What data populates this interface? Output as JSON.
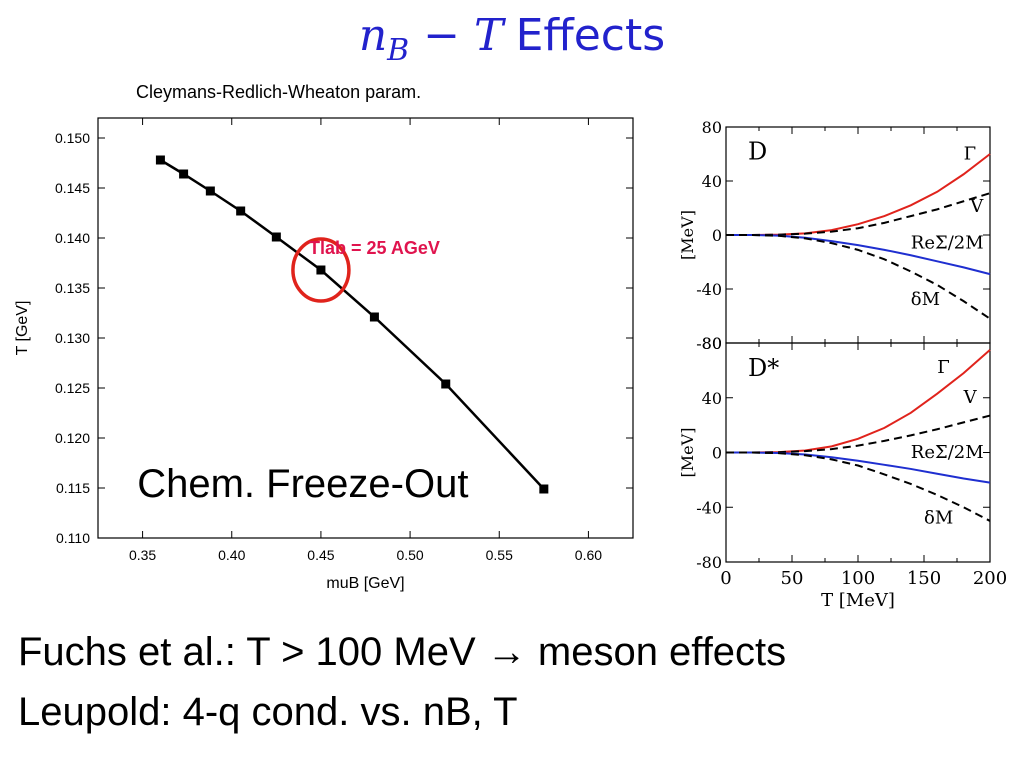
{
  "slide": {
    "title_math_n": "n",
    "title_math_sub": "B",
    "title_math_rest": " − T",
    "title_word": "Effects",
    "left_subtitle": "Cleymans-Redlich-Wheaton param.",
    "bullets": [
      "Fuchs et al.: T > 100 MeV → meson effects",
      "Leupold: 4-q cond. vs. nB, T"
    ]
  },
  "colors": {
    "red": "#e0231c",
    "blue": "#1f2fd0",
    "black": "#000000",
    "annotation": "#e0144e"
  },
  "chart_data": [
    {
      "type": "line",
      "xlabel": "muB [GeV]",
      "ylabel": "T [GeV]",
      "xlim": [
        0.325,
        0.625
      ],
      "ylim": [
        0.11,
        0.152
      ],
      "x_ticks": [
        0.35,
        0.4,
        0.45,
        0.5,
        0.55,
        0.6
      ],
      "x_tick_labels": [
        "0.35",
        "0.40",
        "0.45",
        "0.50",
        "0.55",
        "0.60"
      ],
      "y_ticks": [
        0.11,
        0.115,
        0.12,
        0.125,
        0.13,
        0.135,
        0.14,
        0.145,
        0.15
      ],
      "y_tick_labels": [
        "0.110",
        "0.115",
        "0.120",
        "0.125",
        "0.130",
        "0.135",
        "0.140",
        "0.145",
        "0.150"
      ],
      "series": [
        {
          "x": [
            0.36,
            0.373,
            0.388,
            0.405,
            0.425,
            0.45,
            0.48,
            0.52,
            0.575
          ],
          "y": [
            0.1478,
            0.1464,
            0.1447,
            0.1427,
            0.1401,
            0.1368,
            0.1321,
            0.1254,
            0.1149
          ]
        }
      ],
      "annotations": [
        {
          "text": "Tlab = 25 AGeV",
          "x": 0.48,
          "y": 0.1384
        },
        {
          "text": "Chem. Freeze-Out",
          "x": 0.347,
          "y": 0.1141
        }
      ],
      "circle_at": {
        "x": 0.45,
        "y": 0.1368
      }
    },
    {
      "type": "line",
      "panel_label": "D",
      "ylabel": "[MeV]",
      "xlim": [
        0,
        200
      ],
      "ylim": [
        -80,
        80
      ],
      "y_ticks": [
        -80,
        -40,
        0,
        40,
        80
      ],
      "y_tick_labels": [
        "-80",
        "-40",
        "0",
        "40",
        "80"
      ],
      "series": [
        {
          "name": "Γ",
          "color": "#e0231c",
          "dash": false,
          "label_at": [
            180,
            56
          ],
          "x": [
            0,
            20,
            40,
            60,
            80,
            100,
            120,
            140,
            160,
            180,
            200
          ],
          "y": [
            0,
            0,
            0.3,
            1.2,
            3.6,
            8,
            14,
            22,
            32,
            45,
            60
          ]
        },
        {
          "name": "V",
          "color": "#000000",
          "dash": true,
          "label_at": [
            185,
            17
          ],
          "x": [
            0,
            20,
            40,
            60,
            80,
            100,
            120,
            140,
            160,
            180,
            200
          ],
          "y": [
            0,
            0,
            0.2,
            1,
            2.5,
            5,
            9,
            14,
            19,
            25,
            31
          ]
        },
        {
          "name": "ReΣ/2M",
          "color": "#1f2fd0",
          "dash": false,
          "label_at": [
            140,
            -10
          ],
          "x": [
            0,
            20,
            40,
            60,
            80,
            100,
            120,
            140,
            160,
            180,
            200
          ],
          "y": [
            0,
            0,
            -0.5,
            -2,
            -4.5,
            -7.5,
            -11,
            -15,
            -19.5,
            -24,
            -29
          ]
        },
        {
          "name": "δM",
          "color": "#000000",
          "dash": true,
          "label_at": [
            140,
            -52
          ],
          "x": [
            0,
            20,
            40,
            60,
            80,
            100,
            120,
            140,
            160,
            180,
            200
          ],
          "y": [
            0,
            0,
            -0.6,
            -2.5,
            -6,
            -11,
            -18,
            -27,
            -37,
            -49,
            -62
          ]
        }
      ]
    },
    {
      "type": "line",
      "panel_label": "D*",
      "ylabel": "[MeV]",
      "xlabel": "T [MeV]",
      "xlim": [
        0,
        200
      ],
      "ylim": [
        -80,
        80
      ],
      "x_ticks": [
        0,
        50,
        100,
        150,
        200
      ],
      "x_tick_labels": [
        "0",
        "50",
        "100",
        "150",
        "200"
      ],
      "y_ticks": [
        -80,
        -40,
        0,
        40,
        80
      ],
      "y_tick_labels": [
        "-80",
        "-40",
        "0",
        "40",
        "80"
      ],
      "series": [
        {
          "name": "Γ",
          "color": "#e0231c",
          "dash": false,
          "label_at": [
            160,
            58
          ],
          "x": [
            0,
            20,
            40,
            60,
            80,
            100,
            120,
            140,
            160,
            180,
            200
          ],
          "y": [
            0,
            0,
            0.3,
            1.5,
            4.5,
            10,
            18,
            29,
            43,
            58,
            75
          ]
        },
        {
          "name": "V",
          "color": "#000000",
          "dash": true,
          "label_at": [
            180,
            36
          ],
          "x": [
            0,
            20,
            40,
            60,
            80,
            100,
            120,
            140,
            160,
            180,
            200
          ],
          "y": [
            0,
            0,
            0.2,
            1,
            2.5,
            5,
            8.5,
            12.5,
            17,
            22,
            27
          ]
        },
        {
          "name": "ReΣ/2M",
          "color": "#1f2fd0",
          "dash": false,
          "label_at": [
            140,
            -4
          ],
          "x": [
            0,
            20,
            40,
            60,
            80,
            100,
            120,
            140,
            160,
            180,
            200
          ],
          "y": [
            0,
            0,
            -0.4,
            -1.5,
            -3.5,
            -6,
            -9,
            -12,
            -15.5,
            -19,
            -22
          ]
        },
        {
          "name": "δM",
          "color": "#000000",
          "dash": true,
          "label_at": [
            150,
            -52
          ],
          "x": [
            0,
            20,
            40,
            60,
            80,
            100,
            120,
            140,
            160,
            180,
            200
          ],
          "y": [
            0,
            0,
            -0.5,
            -2,
            -5,
            -9.5,
            -16,
            -23,
            -31,
            -40,
            -50
          ]
        }
      ]
    }
  ]
}
